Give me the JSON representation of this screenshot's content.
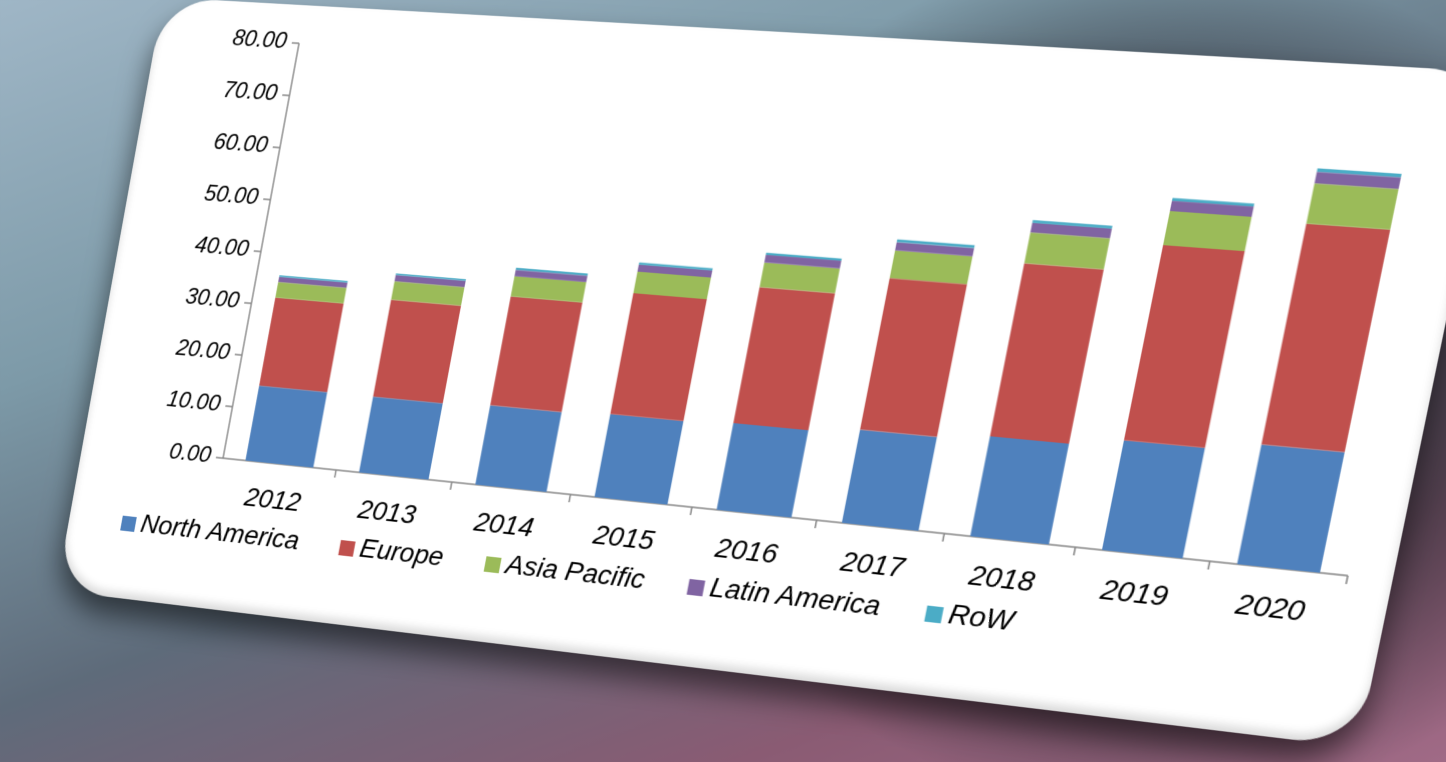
{
  "chart_data": {
    "type": "stacked_bar",
    "categories": [
      "2012",
      "2013",
      "2014",
      "2015",
      "2016",
      "2017",
      "2018",
      "2019",
      "2020"
    ],
    "series": [
      {
        "name": "North America",
        "color": "#4f81bd",
        "values": [
          14.5,
          14.5,
          15,
          15.5,
          16,
          17,
          18,
          19.5,
          21
        ]
      },
      {
        "name": "Europe",
        "color": "#c0504d",
        "values": [
          17,
          18.5,
          20.5,
          22.5,
          25,
          27.5,
          31,
          34.5,
          38.5
        ]
      },
      {
        "name": "Asia Pacific",
        "color": "#9bbb59",
        "values": [
          3,
          3.5,
          3.8,
          4,
          4.5,
          5,
          5.5,
          6,
          7
        ]
      },
      {
        "name": "Latin America",
        "color": "#8064a2",
        "values": [
          1,
          1.2,
          1.2,
          1.3,
          1.4,
          1.5,
          1.7,
          1.8,
          2
        ]
      },
      {
        "name": "RoW",
        "color": "#4bacc6",
        "values": [
          0.3,
          0.3,
          0.4,
          0.4,
          0.4,
          0.5,
          0.5,
          0.5,
          0.6
        ]
      }
    ],
    "ylim": [
      0,
      80
    ],
    "yticks": [
      {
        "value": 0,
        "label": "0.00"
      },
      {
        "value": 10,
        "label": "10.00"
      },
      {
        "value": 20,
        "label": "20.00"
      },
      {
        "value": 30,
        "label": "30.00"
      },
      {
        "value": 40,
        "label": "40.00"
      },
      {
        "value": 50,
        "label": "50.00"
      },
      {
        "value": 60,
        "label": "60.00"
      },
      {
        "value": 70,
        "label": "70.00"
      },
      {
        "value": 80,
        "label": "80.00"
      }
    ],
    "legend": "bottom"
  }
}
